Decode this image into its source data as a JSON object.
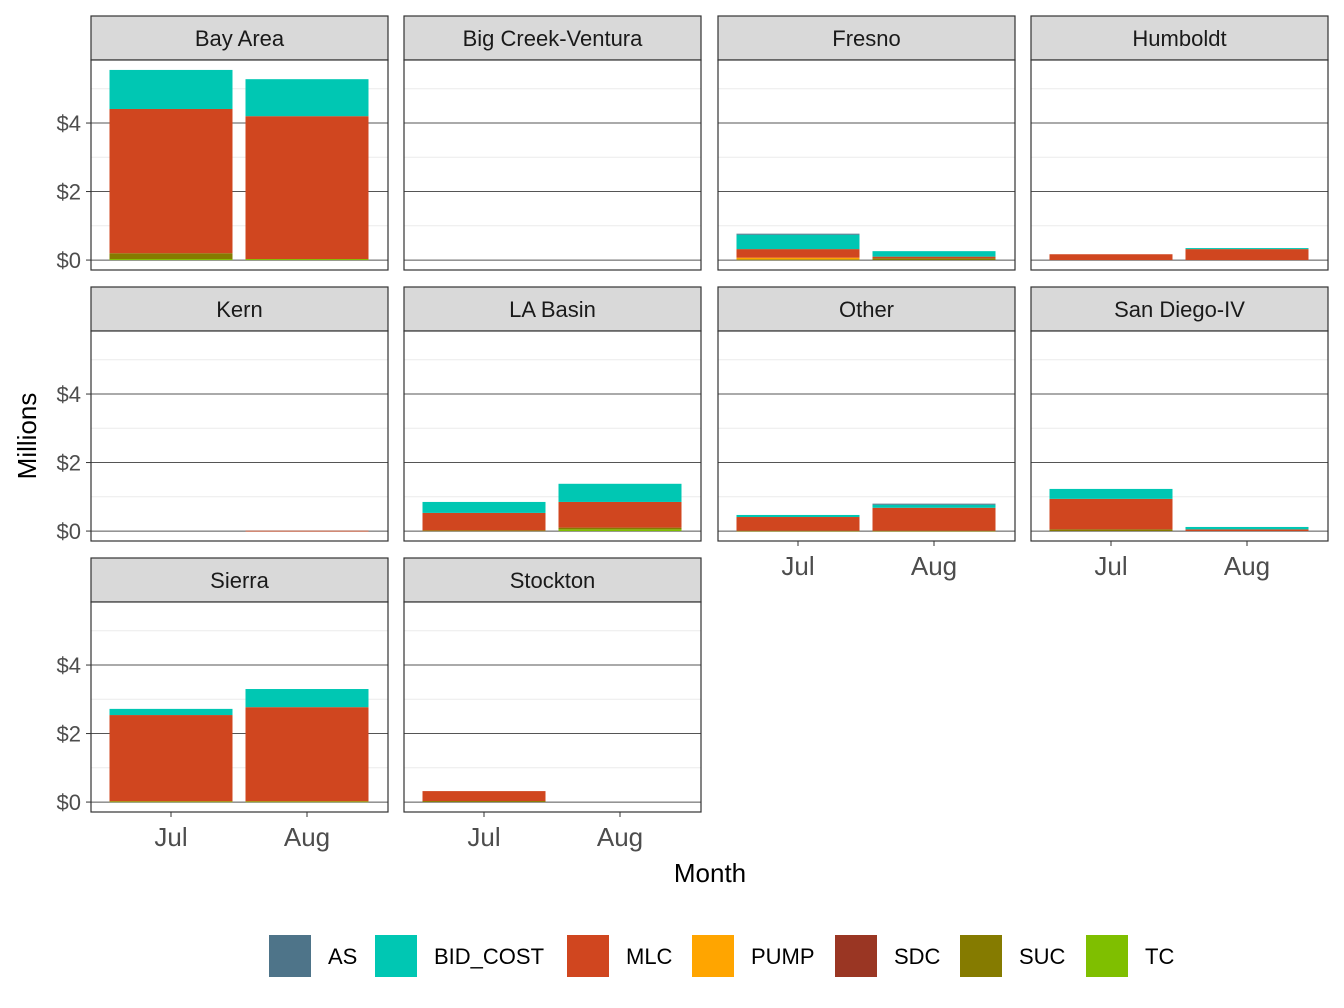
{
  "chart_data": {
    "type": "bar",
    "stacked": true,
    "faceted": true,
    "xlabel": "Month",
    "ylabel": "Millions",
    "categories": [
      "Jul",
      "Aug"
    ],
    "ylim": [
      -0.29,
      5.84
    ],
    "yticks": [
      0,
      2,
      4
    ],
    "ytick_labels": [
      "$0",
      "$2",
      "$4"
    ],
    "grid": true,
    "legend_position": "bottom",
    "series_order": [
      "AS",
      "BID_COST",
      "MLC",
      "PUMP",
      "SDC",
      "SUC",
      "TC"
    ],
    "colors": {
      "AS": "#4E7489",
      "BID_COST": "#00C7B3",
      "MLC": "#D0461F",
      "PUMP": "#FFA500",
      "SDC": "#9A3623",
      "SUC": "#857B00",
      "TC": "#7FBF00"
    },
    "facets": [
      {
        "name": "Bay Area",
        "values": [
          {
            "TC": 0.03,
            "SUC": 0.17,
            "MLC": 4.21,
            "BID_COST": 1.14
          },
          {
            "TC": 0.03,
            "MLC": 4.17,
            "BID_COST": 1.08
          }
        ]
      },
      {
        "name": "Big Creek-Ventura",
        "values": [
          {},
          {}
        ]
      },
      {
        "name": "Fresno",
        "values": [
          {
            "SUC": 0.02,
            "PUMP": 0.05,
            "MLC": 0.25,
            "BID_COST": 0.42,
            "AS": 0.03
          },
          {
            "SUC": 0.05,
            "MLC": 0.05,
            "BID_COST": 0.16
          }
        ]
      },
      {
        "name": "Humboldt",
        "values": [
          {
            "MLC": 0.17
          },
          {
            "MLC": 0.32,
            "BID_COST": 0.03
          }
        ]
      },
      {
        "name": "Kern",
        "values": [
          {},
          {
            "MLC": 0.01
          }
        ]
      },
      {
        "name": "LA Basin",
        "values": [
          {
            "SUC": 0.02,
            "MLC": 0.51,
            "BID_COST": 0.32
          },
          {
            "TC": 0.05,
            "SUC": 0.05,
            "MLC": 0.75,
            "BID_COST": 0.53
          }
        ]
      },
      {
        "name": "Other",
        "values": [
          {
            "SUC": 0.01,
            "MLC": 0.4,
            "BID_COST": 0.06
          },
          {
            "SUC": 0.01,
            "MLC": 0.67,
            "BID_COST": 0.09,
            "AS": 0.03
          }
        ]
      },
      {
        "name": "San Diego-IV",
        "values": [
          {
            "SUC": 0.05,
            "MLC": 0.89,
            "BID_COST": 0.29
          },
          {
            "MLC": 0.05,
            "BID_COST": 0.07
          }
        ]
      },
      {
        "name": "Sierra",
        "values": [
          {
            "TC": 0.02,
            "MLC": 2.52,
            "BID_COST": 0.18
          },
          {
            "TC": 0.02,
            "MLC": 2.75,
            "BID_COST": 0.53
          }
        ]
      },
      {
        "name": "Stockton",
        "values": [
          {
            "SUC": 0.03,
            "MLC": 0.29
          },
          {}
        ]
      }
    ]
  }
}
